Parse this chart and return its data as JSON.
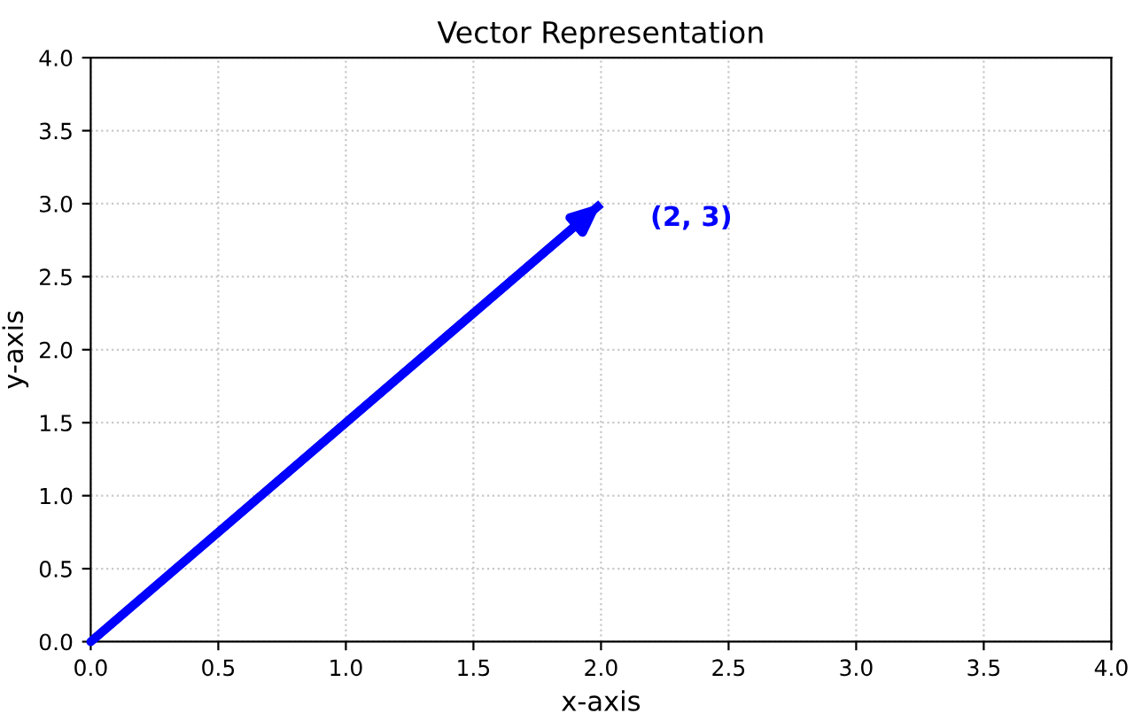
{
  "chart_data": {
    "type": "line",
    "title": "Vector Representation",
    "xlabel": "x-axis",
    "ylabel": "y-axis",
    "x": [
      0,
      2
    ],
    "series": [
      {
        "color": "#0000ff",
        "values": [
          0,
          3
        ]
      }
    ],
    "annotations": [
      {
        "text": "(2, 3)",
        "x": 2,
        "y": 3
      }
    ],
    "xlim": [
      0,
      4
    ],
    "ylim": [
      0,
      4
    ],
    "xticks": [
      {
        "value": 0,
        "label": "0.0"
      },
      0.5,
      {
        "value": 1,
        "label": "1.0"
      },
      1.5,
      {
        "value": 2,
        "label": "2.0"
      },
      2.5,
      {
        "value": 3,
        "label": "3.0"
      },
      3.5,
      {
        "value": 4,
        "label": "4.0"
      }
    ],
    "yticks": [
      {
        "value": 0,
        "label": "0.0"
      },
      0.5,
      {
        "value": 1,
        "label": "1.0"
      },
      1.5,
      {
        "value": 2,
        "label": "2.0"
      },
      2.5,
      {
        "value": 3,
        "label": "3.0"
      },
      3.5,
      {
        "value": 4,
        "label": "4.0"
      }
    ],
    "grid": true,
    "line_style": "solid"
  }
}
